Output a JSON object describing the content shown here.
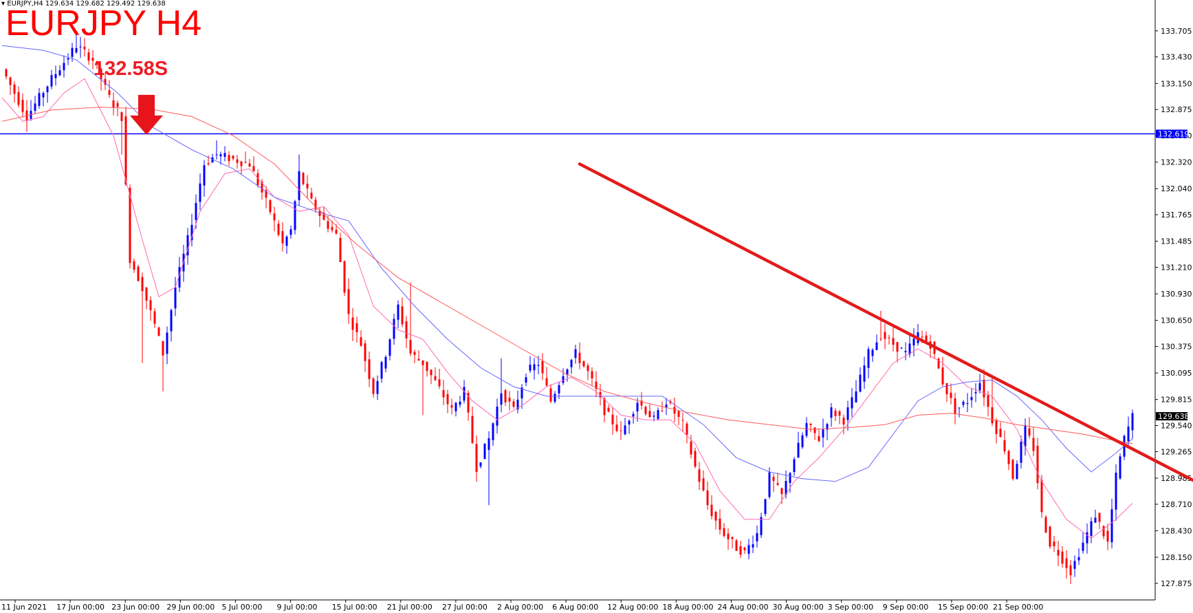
{
  "header": {
    "symbol_info": "EURJPY,H4",
    "ohlc": "129.634 129.682 129.492 129.638"
  },
  "annotations": {
    "title": "EURJPY H4",
    "level_label": "132.58S"
  },
  "colors": {
    "bull": "#0000ff",
    "bear": "#ff0000",
    "ma_fast": "#ff69b4",
    "ma_mid": "#6666ff",
    "ma_slow": "#ff5a5a",
    "hline": "#0000ff",
    "arrow": "#e31b1b"
  },
  "chart_data": {
    "type": "candlestick",
    "ylim": [
      127.7,
      133.9
    ],
    "y_ticks": [
      "133.705",
      "133.430",
      "133.150",
      "132.875",
      "132.600",
      "132.320",
      "132.040",
      "131.765",
      "131.485",
      "131.210",
      "130.930",
      "130.650",
      "130.375",
      "130.095",
      "129.815",
      "129.540",
      "129.265",
      "128.985",
      "128.710",
      "128.430",
      "128.150",
      "127.875"
    ],
    "x_ticks": [
      "11 Jun 2021",
      "17 Jun 00:00",
      "23 Jun 00:00",
      "29 Jun 00:00",
      "5 Jul 00:00",
      "9 Jul 00:00",
      "15 Jul 00:00",
      "21 Jul 00:00",
      "27 Jul 00:00",
      "2 Aug 00:00",
      "6 Aug 00:00",
      "12 Aug 00:00",
      "18 Aug 00:00",
      "24 Aug 00:00",
      "30 Aug 00:00",
      "3 Sep 00:00",
      "9 Sep 00:00",
      "15 Sep 00:00",
      "21 Sep 00:00"
    ],
    "horizontal_line": 132.619,
    "horizontal_line_label": "132.619",
    "current_price": 129.638,
    "current_price_label": "129.638",
    "close_path": [
      [
        0,
        133.3
      ],
      [
        6,
        132.8
      ],
      [
        12,
        133.2
      ],
      [
        18,
        133.55
      ],
      [
        22,
        133.4
      ],
      [
        26,
        133.0
      ],
      [
        29,
        132.8
      ],
      [
        31,
        131.3
      ],
      [
        34,
        131.0
      ],
      [
        37,
        130.6
      ],
      [
        39,
        130.3
      ],
      [
        42,
        131.0
      ],
      [
        45,
        131.5
      ],
      [
        49,
        132.3
      ],
      [
        52,
        132.4
      ],
      [
        56,
        132.35
      ],
      [
        60,
        132.3
      ],
      [
        62,
        132.1
      ],
      [
        65,
        131.8
      ],
      [
        68,
        131.45
      ],
      [
        70,
        131.6
      ],
      [
        72,
        132.2
      ],
      [
        75,
        131.9
      ],
      [
        78,
        131.7
      ],
      [
        81,
        131.55
      ],
      [
        84,
        130.7
      ],
      [
        87,
        130.4
      ],
      [
        90,
        129.9
      ],
      [
        93,
        130.3
      ],
      [
        96,
        130.8
      ],
      [
        99,
        130.3
      ],
      [
        102,
        130.2
      ],
      [
        105,
        130.0
      ],
      [
        109,
        129.7
      ],
      [
        112,
        129.9
      ],
      [
        115,
        129.1
      ],
      [
        118,
        129.4
      ],
      [
        121,
        129.9
      ],
      [
        124,
        129.7
      ],
      [
        127,
        130.1
      ],
      [
        130,
        130.2
      ],
      [
        133,
        129.8
      ],
      [
        136,
        130.1
      ],
      [
        139,
        130.3
      ],
      [
        142,
        130.1
      ],
      [
        146,
        129.7
      ],
      [
        150,
        129.45
      ],
      [
        154,
        129.8
      ],
      [
        158,
        129.6
      ],
      [
        161,
        129.8
      ],
      [
        165,
        129.55
      ],
      [
        168,
        129.1
      ],
      [
        171,
        128.7
      ],
      [
        174,
        128.45
      ],
      [
        178,
        128.25
      ],
      [
        180,
        128.2
      ],
      [
        183,
        128.4
      ],
      [
        186,
        129.0
      ],
      [
        189,
        128.8
      ],
      [
        192,
        129.2
      ],
      [
        195,
        129.55
      ],
      [
        198,
        129.4
      ],
      [
        201,
        129.7
      ],
      [
        204,
        129.6
      ],
      [
        207,
        129.9
      ],
      [
        210,
        130.3
      ],
      [
        213,
        130.5
      ],
      [
        216,
        130.4
      ],
      [
        219,
        130.3
      ],
      [
        222,
        130.5
      ],
      [
        225,
        130.4
      ],
      [
        228,
        130.0
      ],
      [
        231,
        129.7
      ],
      [
        234,
        129.8
      ],
      [
        237,
        130.0
      ],
      [
        240,
        129.6
      ],
      [
        243,
        129.3
      ],
      [
        245,
        129.0
      ],
      [
        248,
        129.5
      ],
      [
        250,
        129.3
      ],
      [
        252,
        128.6
      ],
      [
        254,
        128.3
      ],
      [
        256,
        128.2
      ],
      [
        259,
        128.0
      ],
      [
        262,
        128.3
      ],
      [
        265,
        128.6
      ],
      [
        268,
        128.3
      ],
      [
        270,
        129.0
      ],
      [
        272,
        129.4
      ],
      [
        274,
        129.638
      ]
    ],
    "spikes": [
      [
        18,
        133.7,
        "high"
      ],
      [
        29,
        132.4,
        "low"
      ],
      [
        34,
        130.2,
        "low"
      ],
      [
        39,
        129.9,
        "low"
      ],
      [
        52,
        132.55,
        "high"
      ],
      [
        72,
        132.4,
        "high"
      ],
      [
        99,
        131.05,
        "high"
      ],
      [
        102,
        129.65,
        "low"
      ],
      [
        121,
        130.25,
        "high"
      ],
      [
        118,
        128.7,
        "low"
      ],
      [
        213,
        130.75,
        "high"
      ],
      [
        240,
        130.05,
        "high"
      ],
      [
        259,
        127.92,
        "low"
      ]
    ],
    "series": [
      {
        "values": [
          [
            0,
            133.0
          ],
          [
            5,
            132.75
          ],
          [
            10,
            132.8
          ],
          [
            15,
            133.05
          ],
          [
            20,
            133.2
          ],
          [
            27,
            132.6
          ],
          [
            34,
            131.5
          ],
          [
            38,
            130.9
          ],
          [
            42,
            131.0
          ],
          [
            48,
            131.8
          ],
          [
            54,
            132.2
          ],
          [
            60,
            132.25
          ],
          [
            66,
            131.95
          ],
          [
            72,
            131.8
          ],
          [
            78,
            131.85
          ],
          [
            84,
            131.55
          ],
          [
            90,
            130.8
          ],
          [
            96,
            130.55
          ],
          [
            102,
            130.45
          ],
          [
            108,
            130.1
          ],
          [
            114,
            129.8
          ],
          [
            120,
            129.6
          ],
          [
            126,
            129.75
          ],
          [
            132,
            129.95
          ],
          [
            138,
            130.05
          ],
          [
            144,
            129.9
          ],
          [
            150,
            129.65
          ],
          [
            156,
            129.6
          ],
          [
            162,
            129.6
          ],
          [
            168,
            129.35
          ],
          [
            174,
            128.85
          ],
          [
            180,
            128.55
          ],
          [
            186,
            128.55
          ],
          [
            192,
            128.95
          ],
          [
            198,
            129.2
          ],
          [
            204,
            129.5
          ],
          [
            210,
            129.85
          ],
          [
            216,
            130.2
          ],
          [
            222,
            130.35
          ],
          [
            228,
            130.2
          ],
          [
            234,
            129.95
          ],
          [
            240,
            129.85
          ],
          [
            246,
            129.5
          ],
          [
            252,
            128.95
          ],
          [
            258,
            128.55
          ],
          [
            264,
            128.35
          ],
          [
            270,
            128.55
          ],
          [
            274,
            128.72
          ]
        ]
      },
      {
        "values": [
          [
            0,
            133.55
          ],
          [
            10,
            133.5
          ],
          [
            18,
            133.4
          ],
          [
            28,
            133.05
          ],
          [
            36,
            132.7
          ],
          [
            46,
            132.45
          ],
          [
            56,
            132.25
          ],
          [
            66,
            131.95
          ],
          [
            76,
            131.8
          ],
          [
            84,
            131.7
          ],
          [
            92,
            131.2
          ],
          [
            100,
            130.8
          ],
          [
            108,
            130.45
          ],
          [
            116,
            130.15
          ],
          [
            124,
            129.95
          ],
          [
            132,
            129.85
          ],
          [
            140,
            129.85
          ],
          [
            150,
            129.85
          ],
          [
            160,
            129.85
          ],
          [
            170,
            129.55
          ],
          [
            178,
            129.2
          ],
          [
            186,
            129.05
          ],
          [
            194,
            128.98
          ],
          [
            202,
            128.95
          ],
          [
            210,
            129.1
          ],
          [
            216,
            129.45
          ],
          [
            222,
            129.8
          ],
          [
            228,
            129.95
          ],
          [
            234,
            130.0
          ],
          [
            240,
            130.02
          ],
          [
            246,
            129.85
          ],
          [
            252,
            129.6
          ],
          [
            258,
            129.3
          ],
          [
            264,
            129.05
          ],
          [
            270,
            129.25
          ],
          [
            274,
            129.4
          ]
        ]
      },
      {
        "values": [
          [
            0,
            132.75
          ],
          [
            12,
            132.87
          ],
          [
            24,
            132.9
          ],
          [
            36,
            132.88
          ],
          [
            46,
            132.8
          ],
          [
            56,
            132.6
          ],
          [
            66,
            132.3
          ],
          [
            76,
            131.85
          ],
          [
            86,
            131.45
          ],
          [
            96,
            131.1
          ],
          [
            106,
            130.85
          ],
          [
            116,
            130.6
          ],
          [
            126,
            130.35
          ],
          [
            136,
            130.1
          ],
          [
            146,
            129.9
          ],
          [
            156,
            129.78
          ],
          [
            166,
            129.68
          ],
          [
            176,
            129.6
          ],
          [
            186,
            129.55
          ],
          [
            196,
            129.5
          ],
          [
            206,
            129.52
          ],
          [
            214,
            129.55
          ],
          [
            222,
            129.65
          ],
          [
            230,
            129.67
          ],
          [
            238,
            129.62
          ],
          [
            246,
            129.55
          ],
          [
            254,
            129.5
          ],
          [
            262,
            129.45
          ],
          [
            270,
            129.38
          ],
          [
            274,
            129.35
          ]
        ]
      }
    ],
    "trendline": {
      "from": [
        140,
        132.3
      ],
      "to": [
        316,
        128.35
      ]
    },
    "down_arrow_at": [
      35,
      132.58
    ]
  }
}
